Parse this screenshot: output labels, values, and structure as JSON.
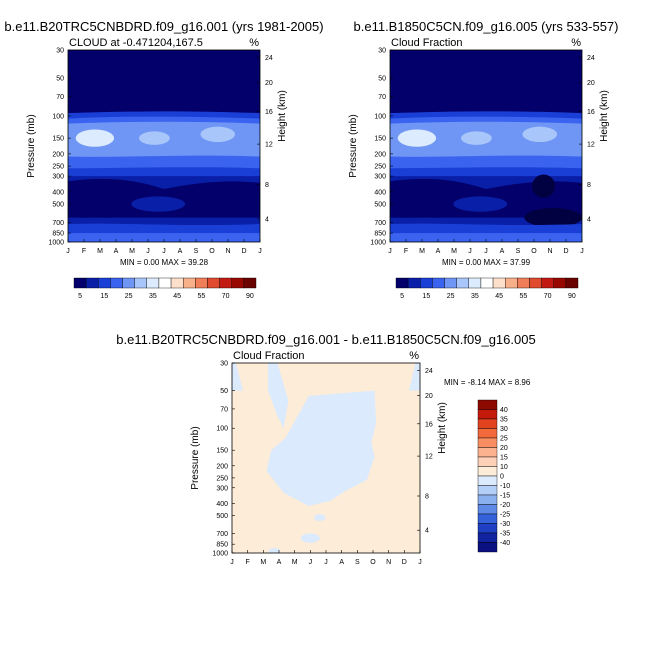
{
  "chart_data": [
    {
      "type": "heatmap",
      "title": "b.e11.B20TRC5CNBDRD.f09_g16.001 (yrs 1981-2005)",
      "subtitle_left": "CLOUD at -0.471204,167.5",
      "subtitle_right": "%",
      "ylabel": "Pressure (mb)",
      "ylabel_right": "Height (km)",
      "x_ticks": [
        "J",
        "F",
        "M",
        "A",
        "M",
        "J",
        "J",
        "A",
        "S",
        "O",
        "N",
        "D",
        "J"
      ],
      "y_ticks": [
        "30",
        "50",
        "70",
        "100",
        "150",
        "200",
        "250",
        "300",
        "400",
        "500",
        "700",
        "850",
        "1000"
      ],
      "y_ticks_right": [
        "24",
        "20",
        "16",
        "12",
        "8",
        "4"
      ],
      "stats": "MIN =   0.00 MAX =  39.28",
      "min": 0.0,
      "max": 39.28,
      "colorbar_labels": [
        "5",
        "15",
        "25",
        "35",
        "45",
        "55",
        "70",
        "90"
      ],
      "colorbar_colors": [
        "#03006b",
        "#0a1fa8",
        "#1a3fd6",
        "#3a64ef",
        "#6f95f5",
        "#a8c6fa",
        "#dcebfd",
        "#ffffff",
        "#fde0cc",
        "#f8b08a",
        "#f07e58",
        "#e04a2e",
        "#c21a12",
        "#980800",
        "#6a0200"
      ]
    },
    {
      "type": "heatmap",
      "title": "b.e11.B1850C5CN.f09_g16.005 (yrs 533-557)",
      "subtitle_left": "Cloud Fraction",
      "subtitle_right": "%",
      "ylabel": "Pressure (mb)",
      "ylabel_right": "Height (km)",
      "x_ticks": [
        "J",
        "F",
        "M",
        "A",
        "M",
        "J",
        "J",
        "A",
        "S",
        "O",
        "N",
        "D",
        "J"
      ],
      "y_ticks": [
        "30",
        "50",
        "70",
        "100",
        "150",
        "200",
        "250",
        "300",
        "400",
        "500",
        "700",
        "850",
        "1000"
      ],
      "y_ticks_right": [
        "24",
        "20",
        "16",
        "12",
        "8",
        "4"
      ],
      "stats": "MIN =   0.00 MAX =  37.99",
      "min": 0.0,
      "max": 37.99,
      "colorbar_labels": [
        "5",
        "15",
        "25",
        "35",
        "45",
        "55",
        "70",
        "90"
      ]
    },
    {
      "type": "heatmap",
      "title": "b.e11.B20TRC5CNBDRD.f09_g16.001 - b.e11.B1850C5CN.f09_g16.005",
      "subtitle_left": "Cloud Fraction",
      "subtitle_right": "%",
      "ylabel": "Pressure (mb)",
      "ylabel_right": "Height (km)",
      "x_ticks": [
        "J",
        "F",
        "M",
        "A",
        "M",
        "J",
        "J",
        "A",
        "S",
        "O",
        "N",
        "D",
        "J"
      ],
      "y_ticks": [
        "30",
        "50",
        "70",
        "100",
        "150",
        "200",
        "250",
        "300",
        "400",
        "500",
        "700",
        "850",
        "1000"
      ],
      "y_ticks_right": [
        "24",
        "20",
        "16",
        "12",
        "8",
        "4"
      ],
      "stats": "MIN =  -8.14 MAX =   8.96",
      "min": -8.14,
      "max": 8.96,
      "colorbar_labels": [
        "40",
        "35",
        "30",
        "25",
        "20",
        "15",
        "10",
        "0",
        "-10",
        "-15",
        "-20",
        "-25",
        "-30",
        "-35",
        "-40"
      ],
      "colorbar_colors": [
        "#8c0a00",
        "#c41a0c",
        "#e0431e",
        "#f26a3c",
        "#f98e63",
        "#fcb18f",
        "#fdd0b8",
        "#fdecd8",
        "#dbeafc",
        "#b4cff7",
        "#8bb0f0",
        "#5f89e6",
        "#3562db",
        "#1f3fc4",
        "#12239f",
        "#0a1080"
      ],
      "neg_fill": "#dbeafc",
      "pos_fill": "#fdecd8"
    }
  ]
}
